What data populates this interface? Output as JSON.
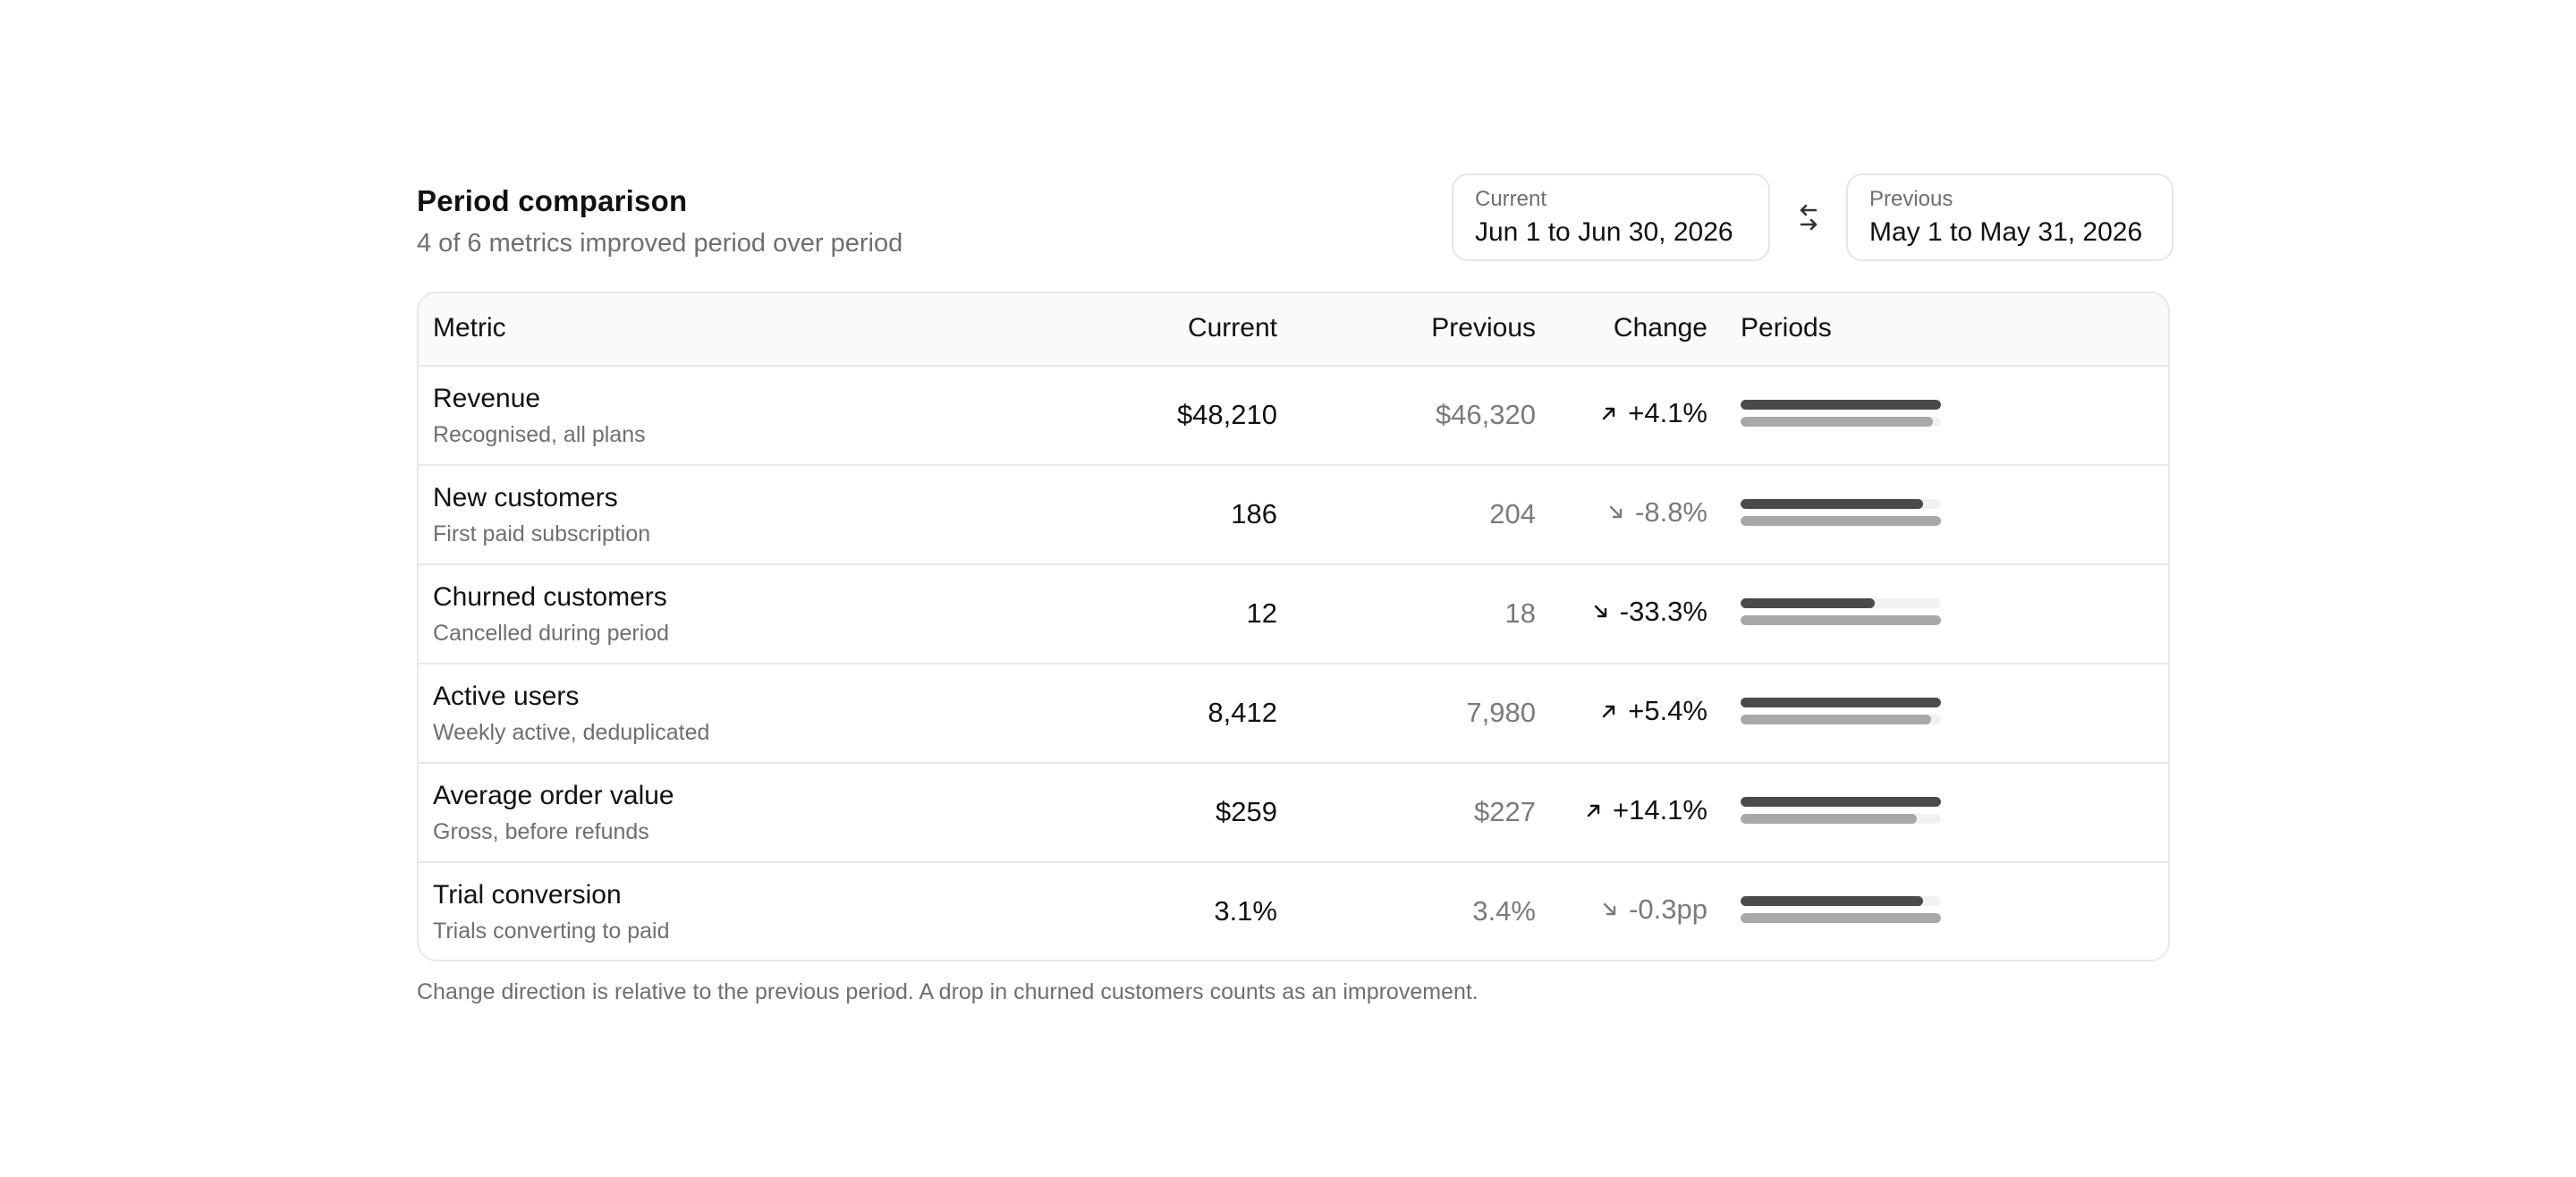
{
  "header": {
    "title": "Period comparison",
    "subtitle": "4 of 6 metrics improved period over period"
  },
  "periods": {
    "current": {
      "label": "Current",
      "value": "Jun 1 to Jun 30, 2026"
    },
    "previous": {
      "label": "Previous",
      "value": "May 1 to May 31, 2026"
    },
    "swap_icon": "swap-arrows-icon"
  },
  "table": {
    "columns": {
      "metric": "Metric",
      "current": "Current",
      "previous": "Previous",
      "change": "Change",
      "periods": "Periods"
    },
    "rows": [
      {
        "name": "Revenue",
        "description": "Recognised, all plans",
        "current": "$48,210",
        "previous": "$46,320",
        "change": "+4.1%",
        "direction": "up",
        "current_share": 1.0,
        "previous_share": 0.96
      },
      {
        "name": "New customers",
        "description": "First paid subscription",
        "current": "186",
        "previous": "204",
        "change": "-8.8%",
        "direction": "down",
        "current_share": 0.91,
        "previous_share": 1.0
      },
      {
        "name": "Churned customers",
        "description": "Cancelled during period",
        "current": "12",
        "previous": "18",
        "change": "-33.3%",
        "direction": "down-good",
        "current_share": 0.67,
        "previous_share": 1.0
      },
      {
        "name": "Active users",
        "description": "Weekly active, deduplicated",
        "current": "8,412",
        "previous": "7,980",
        "change": "+5.4%",
        "direction": "up",
        "current_share": 1.0,
        "previous_share": 0.95
      },
      {
        "name": "Average order value",
        "description": "Gross, before refunds",
        "current": "$259",
        "previous": "$227",
        "change": "+14.1%",
        "direction": "up",
        "current_share": 1.0,
        "previous_share": 0.88
      },
      {
        "name": "Trial conversion",
        "description": "Trials converting to paid",
        "current": "3.1%",
        "previous": "3.4%",
        "change": "-0.3pp",
        "direction": "down",
        "current_share": 0.91,
        "previous_share": 1.0
      }
    ]
  },
  "colors": {
    "current_bar": "#4a4a4a",
    "previous_bar": "#a8a8a8",
    "improved_text": "#111111",
    "declined_text": "#7a7a7a"
  },
  "footnote": "Change direction is relative to the previous period. A drop in churned customers counts as an improvement."
}
